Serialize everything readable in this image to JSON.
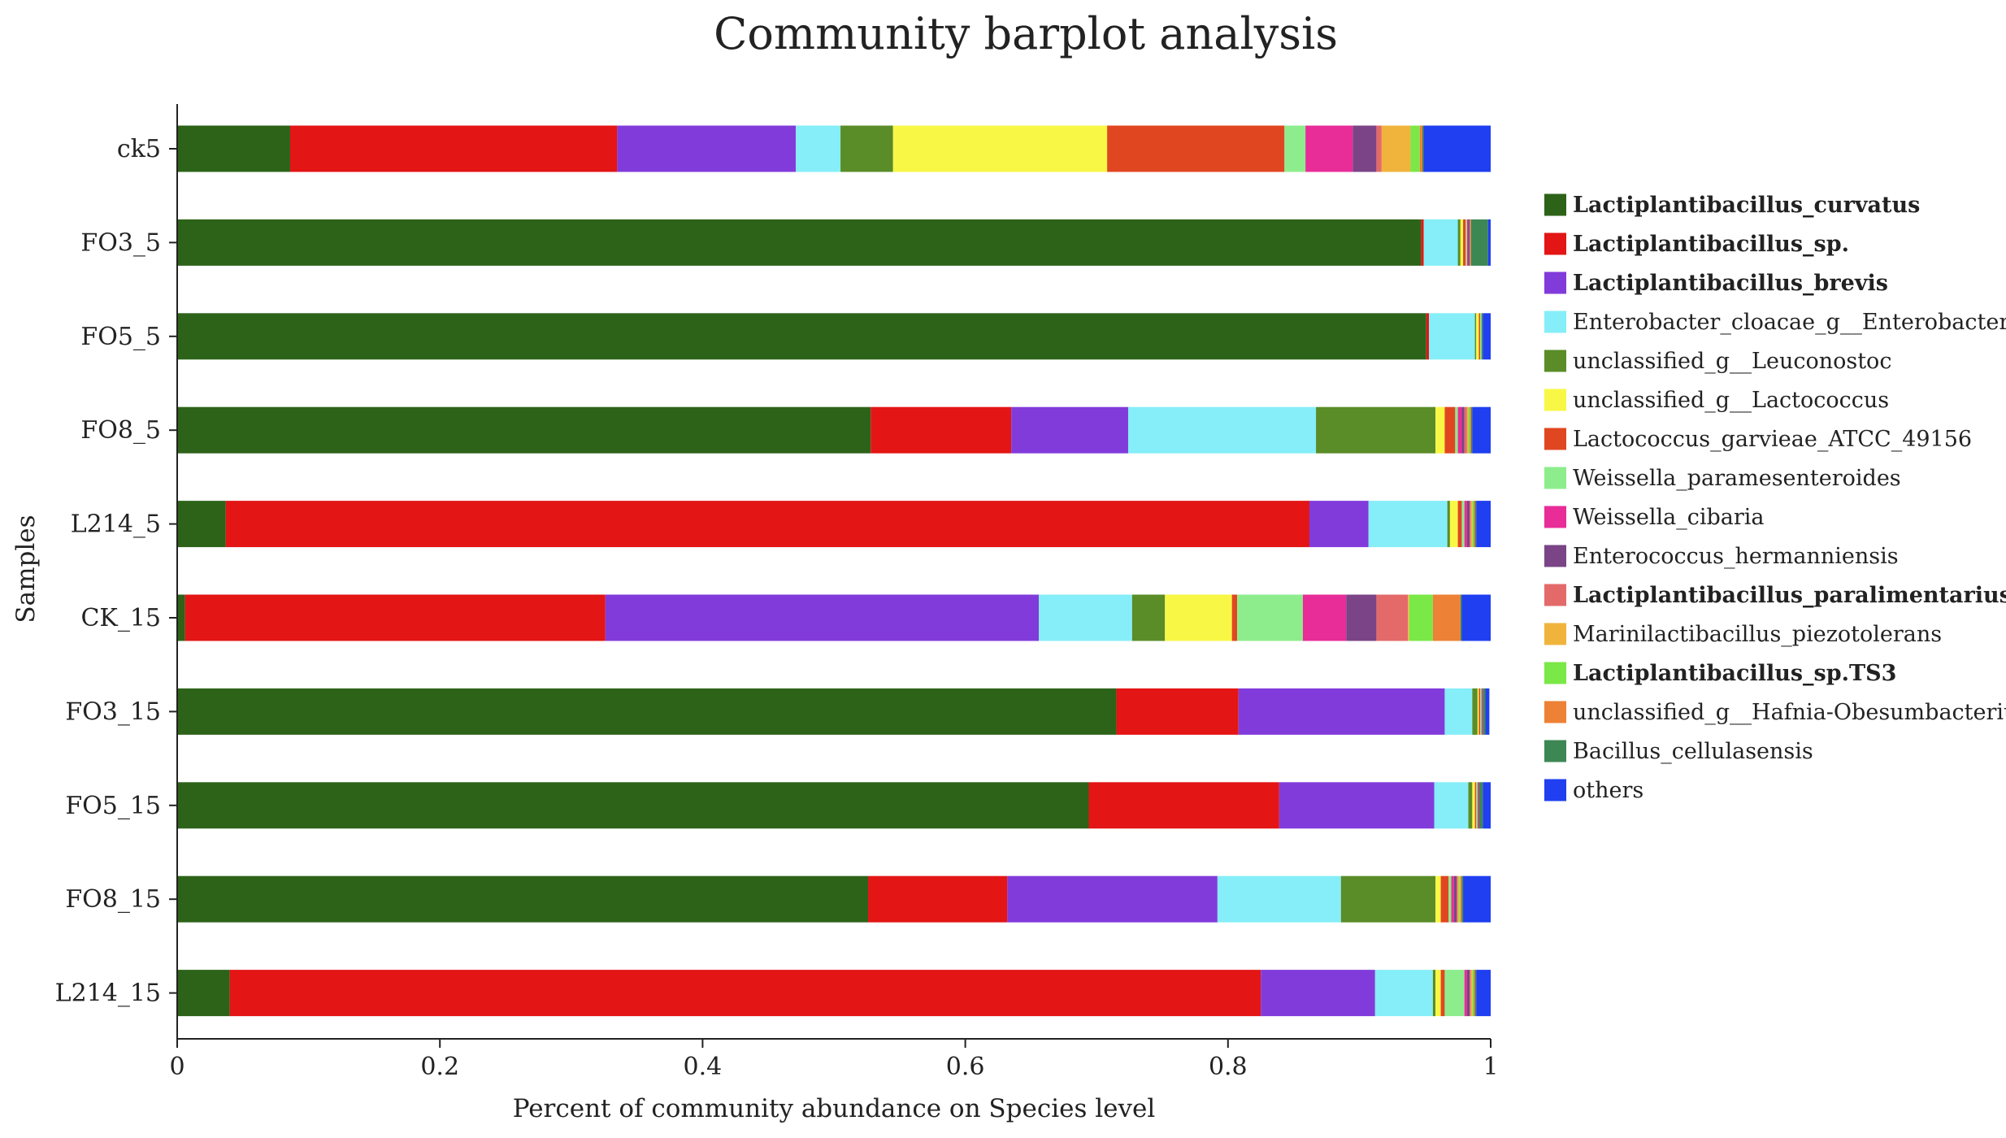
{
  "chart_data": {
    "type": "stacked-horizontal-bar",
    "title": "Community barplot analysis",
    "xlabel": "Percent of community abundance on Species level",
    "ylabel": "Samples",
    "xlim": [
      0,
      1
    ],
    "xticks": [
      "0",
      "0.2",
      "0.4",
      "0.6",
      "0.8",
      "1"
    ],
    "xtick_values": [
      0,
      0.2,
      0.4,
      0.6,
      0.8,
      1
    ],
    "categories": [
      "ck5",
      "FO3_5",
      "FO5_5",
      "FO8_5",
      "L214_5",
      "CK_15",
      "FO3_15",
      "FO5_15",
      "FO8_15",
      "L214_15"
    ],
    "series": [
      {
        "name": "Lactiplantibacillus_curvatus",
        "bold": true,
        "color": "#2d6319",
        "values": [
          0.086,
          0.947,
          0.951,
          0.528,
          0.037,
          0.006,
          0.715,
          0.694,
          0.526,
          0.04
        ]
      },
      {
        "name": "Lactiplantibacillus_sp.",
        "bold": true,
        "color": "#e31515",
        "values": [
          0.249,
          0.002,
          0.002,
          0.107,
          0.825,
          0.32,
          0.093,
          0.145,
          0.106,
          0.785
        ]
      },
      {
        "name": "Lactiplantibacillus_brevis",
        "bold": true,
        "color": "#823bdb",
        "values": [
          0.136,
          0.0,
          0.0,
          0.089,
          0.045,
          0.33,
          0.157,
          0.118,
          0.16,
          0.087
        ]
      },
      {
        "name": "Enterobacter_cloacae_g__Enterobacter",
        "bold": false,
        "color": "#85eef8",
        "values": [
          0.034,
          0.026,
          0.035,
          0.143,
          0.06,
          0.071,
          0.021,
          0.026,
          0.094,
          0.044
        ]
      },
      {
        "name": "unclassified_g__Leuconostoc",
        "bold": false,
        "color": "#5a8c28",
        "values": [
          0.04,
          0.002,
          0.001,
          0.091,
          0.002,
          0.025,
          0.004,
          0.003,
          0.072,
          0.002
        ]
      },
      {
        "name": "unclassified_g__Lactococcus",
        "bold": false,
        "color": "#f8f745",
        "values": [
          0.163,
          0.002,
          0.002,
          0.007,
          0.006,
          0.051,
          0.001,
          0.002,
          0.004,
          0.004
        ]
      },
      {
        "name": "Lactococcus_garvieae_ATCC_49156",
        "bold": false,
        "color": "#e04721",
        "values": [
          0.135,
          0.002,
          0.001,
          0.008,
          0.003,
          0.004,
          0.001,
          0.001,
          0.006,
          0.003
        ]
      },
      {
        "name": "Weissella_paramesenteroides",
        "bold": false,
        "color": "#8ded8d",
        "values": [
          0.016,
          0.001,
          0.001,
          0.002,
          0.002,
          0.05,
          0.001,
          0.001,
          0.002,
          0.015
        ]
      },
      {
        "name": "Weissella_cibaria",
        "bold": false,
        "color": "#e82c98",
        "values": [
          0.036,
          0.001,
          0.0,
          0.003,
          0.002,
          0.033,
          0.001,
          0.001,
          0.002,
          0.002
        ]
      },
      {
        "name": "Enterococcus_hermanniensis",
        "bold": false,
        "color": "#7b4486",
        "values": [
          0.018,
          0.001,
          0.0,
          0.002,
          0.002,
          0.023,
          0.0,
          0.0,
          0.002,
          0.002
        ]
      },
      {
        "name": "Lactiplantibacillus_paralimentarius",
        "bold": true,
        "color": "#e46a6a",
        "values": [
          0.004,
          0.0,
          0.0,
          0.002,
          0.001,
          0.024,
          0.0,
          0.0,
          0.001,
          0.001
        ]
      },
      {
        "name": "Marinilactibacillus_piezotolerans",
        "bold": false,
        "color": "#f0b43c",
        "values": [
          0.022,
          0.0,
          0.0,
          0.001,
          0.001,
          0.001,
          0.0,
          0.0,
          0.001,
          0.001
        ]
      },
      {
        "name": "Lactiplantibacillus_sp.TS3",
        "bold": true,
        "color": "#7ae847",
        "values": [
          0.007,
          0.0,
          0.0,
          0.001,
          0.001,
          0.018,
          0.0,
          0.0,
          0.001,
          0.001
        ]
      },
      {
        "name": "unclassified_g__Hafnia-Obesumbacterium",
        "bold": false,
        "color": "#ed8136",
        "values": [
          0.002,
          0.001,
          0.0,
          0.001,
          0.001,
          0.021,
          0.0,
          0.0,
          0.001,
          0.001
        ]
      },
      {
        "name": "Bacillus_cellulasensis",
        "bold": false,
        "color": "#3d8754",
        "values": [
          0.001,
          0.013,
          0.001,
          0.001,
          0.001,
          0.001,
          0.002,
          0.003,
          0.001,
          0.001
        ]
      },
      {
        "name": "others",
        "bold": false,
        "color": "#1f3ff0",
        "values": [
          0.051,
          0.002,
          0.006,
          0.019,
          0.012,
          0.025,
          0.003,
          0.006,
          0.021,
          0.011
        ]
      }
    ]
  }
}
